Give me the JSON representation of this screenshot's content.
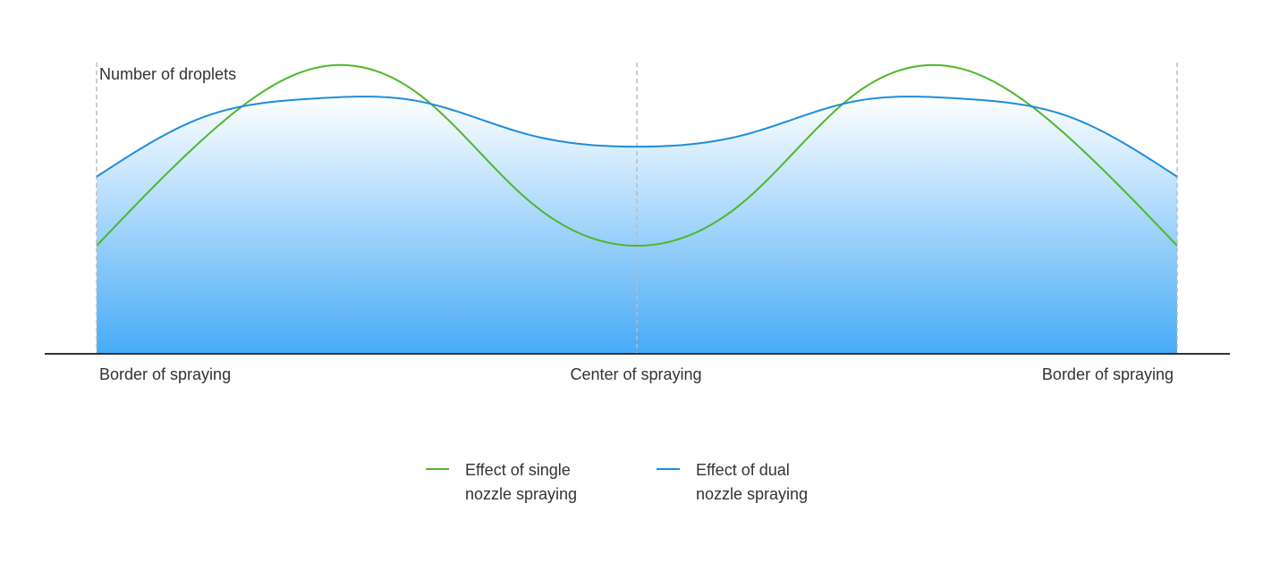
{
  "chart_data": {
    "type": "area",
    "ylabel": "Number of droplets",
    "x_tick_labels": [
      "Border of spraying",
      "Center of spraying",
      "Border of spraying"
    ],
    "x": [
      0,
      0.1,
      0.2,
      0.3,
      0.4,
      0.5,
      0.6,
      0.7,
      0.8,
      0.9,
      1
    ],
    "ylim": [
      0,
      1
    ],
    "grid": false,
    "legend_position": "bottom-center",
    "series": [
      {
        "name": "Effect of single nozzle spraying",
        "color": "#4CB82A",
        "values": [
          0.36,
          0.72,
          0.95,
          0.86,
          0.51,
          0.36,
          0.51,
          0.86,
          0.95,
          0.72,
          0.36
        ]
      },
      {
        "name": "Effect of dual nozzle spraying",
        "color": "#1F8DDC",
        "values": [
          0.59,
          0.79,
          0.85,
          0.84,
          0.73,
          0.69,
          0.73,
          0.84,
          0.85,
          0.79,
          0.59
        ]
      }
    ],
    "fill": {
      "series": "Effect of dual nozzle spraying",
      "top_color": "#FFFFFF",
      "bottom_color": "#48AAF7"
    },
    "reference_lines_at_x": [
      0,
      0.5,
      1
    ]
  }
}
